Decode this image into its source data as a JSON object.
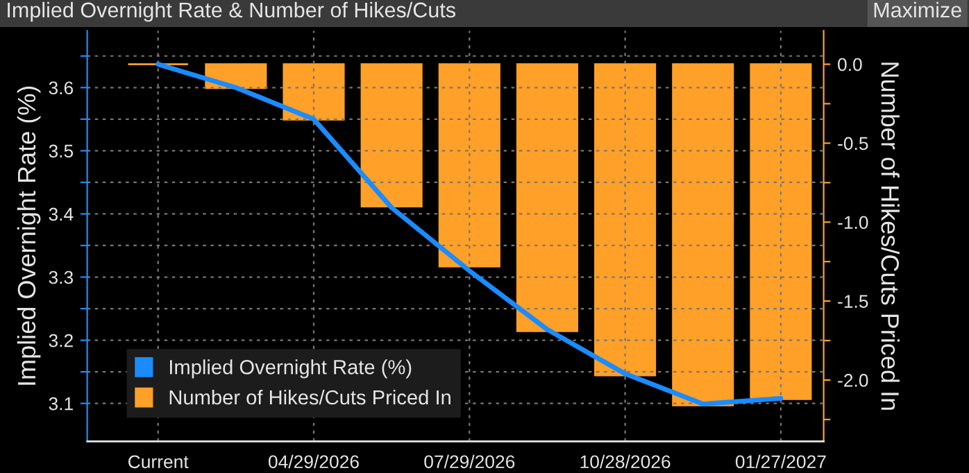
{
  "chart_data": {
    "type": "bar",
    "title": "Implied Overnight Rate & Number of Hikes/Cuts",
    "ylabel": "Implied Overnight Rate (%)",
    "y2label": "Number of Hikes/Cuts Priced In",
    "annotations": [
      "Maximize"
    ],
    "categories": [
      "Current",
      null,
      "04/29/2026",
      null,
      "07/29/2026",
      null,
      "10/28/2026",
      null,
      "01/27/2027"
    ],
    "series": [
      {
        "name": "Implied Overnight Rate (%)",
        "type": "line",
        "axis": "y",
        "color": "#1a8cff",
        "values": [
          3.637,
          3.6,
          3.55,
          3.41,
          3.31,
          3.217,
          3.147,
          3.099,
          3.108
        ]
      },
      {
        "name": "Number of Hikes/Cuts Priced In",
        "axis": "y2",
        "color": "#ffa028",
        "values": [
          0.0,
          -0.15,
          -0.35,
          -0.9,
          -1.28,
          -1.69,
          -1.97,
          -2.16,
          -2.12
        ]
      }
    ],
    "ylim": [
      3.04,
      3.69
    ],
    "yticks": [
      3.1,
      {
        "value": 3.15,
        "label": null
      },
      3.2,
      {
        "value": 3.25,
        "label": null
      },
      3.3,
      {
        "value": 3.35,
        "label": null
      },
      3.4,
      {
        "value": 3.45,
        "label": null
      },
      3.5,
      {
        "value": 3.55,
        "label": null
      },
      3.6,
      {
        "value": 3.65,
        "label": null
      }
    ],
    "y2lim": [
      -2.388,
      0.212
    ],
    "y2ticks": [
      {
        "value": 0.0,
        "label": "0.0"
      },
      {
        "value": -0.25,
        "label": null
      },
      {
        "value": -0.5,
        "label": "-0.5"
      },
      {
        "value": -0.75,
        "label": null
      },
      {
        "value": -1.0,
        "label": "-1.0"
      },
      {
        "value": -1.25,
        "label": null
      },
      {
        "value": -1.5,
        "label": "-1.5"
      },
      {
        "value": -1.75,
        "label": null
      },
      {
        "value": -2.0,
        "label": "-2.0"
      },
      {
        "value": -2.25,
        "label": null
      }
    ],
    "grid": true,
    "legend": "bottom left"
  }
}
